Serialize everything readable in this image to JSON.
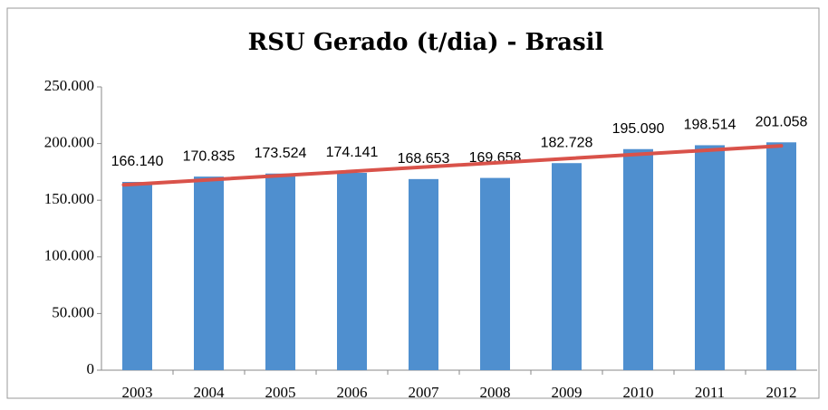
{
  "chart_data": {
    "type": "bar",
    "title": "RSU Gerado (t/dia) - Brasil",
    "categories": [
      "2003",
      "2004",
      "2005",
      "2006",
      "2007",
      "2008",
      "2009",
      "2010",
      "2011",
      "2012"
    ],
    "values": [
      166140,
      170835,
      173524,
      174141,
      168653,
      169658,
      182728,
      195090,
      198514,
      201058
    ],
    "value_labels": [
      "166.140",
      "170.835",
      "173.524",
      "174.141",
      "168.653",
      "169.658",
      "182.728",
      "195.090",
      "198.514",
      "201.058"
    ],
    "color": "#4f8fcf",
    "trend": {
      "color": "#d9524a",
      "values": [
        163500,
        198000
      ]
    },
    "ylim": [
      0,
      250000
    ],
    "yticks": [
      0,
      {
        "value": 50000,
        "label": "50.000"
      },
      {
        "value": 100000,
        "label": "100.000"
      },
      {
        "value": 150000,
        "label": "150.000"
      },
      {
        "value": 200000,
        "label": "200.000"
      },
      {
        "value": 250000,
        "label": "250.000"
      }
    ],
    "grid": false
  }
}
